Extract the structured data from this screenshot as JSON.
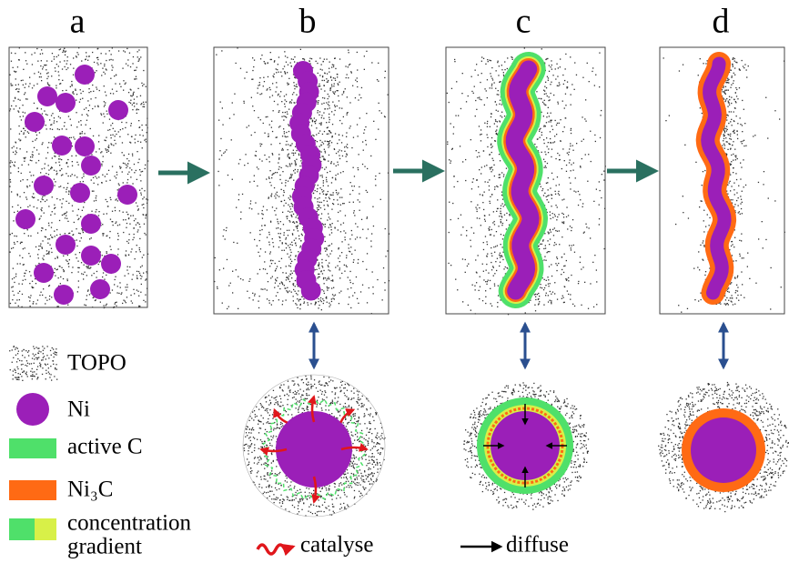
{
  "panels": [
    {
      "label": "a"
    },
    {
      "label": "b"
    },
    {
      "label": "c"
    },
    {
      "label": "d"
    }
  ],
  "legend": {
    "items": [
      {
        "label": "TOPO"
      },
      {
        "label": "Ni"
      },
      {
        "label": "active C"
      },
      {
        "label": "Ni₃C"
      },
      {
        "label_lines": [
          "concentration",
          "gradient"
        ]
      }
    ]
  },
  "keys": [
    {
      "label": "catalyse"
    },
    {
      "label": "diffuse"
    }
  ]
}
